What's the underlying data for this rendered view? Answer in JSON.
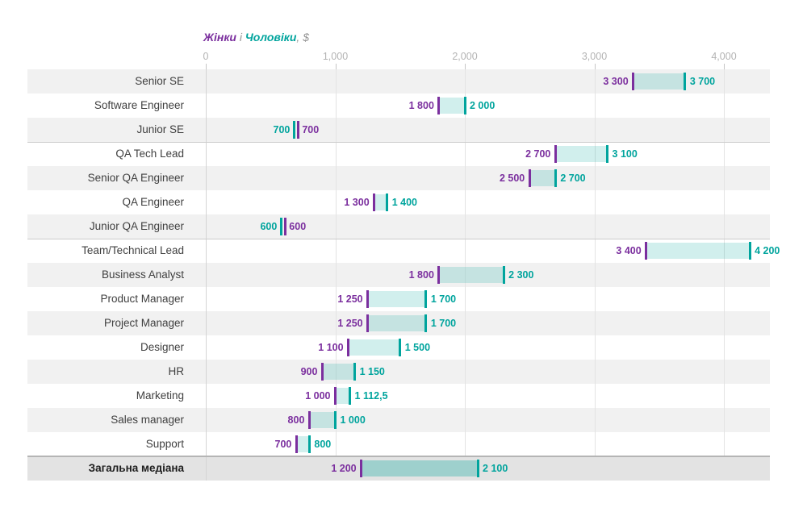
{
  "header": {
    "title_women": "Жінки",
    "title_conjunction": " і ",
    "title_men": "Чоловіки",
    "title_suffix": ", $"
  },
  "colors": {
    "women": "#7b2f9e",
    "men": "#00a49d",
    "band": "rgba(0,166,157,0.18)",
    "band_median": "rgba(0,166,157,0.30)",
    "stripe": "#f1f1f1",
    "stripe_white": "#ffffff",
    "stripe_median": "#e3e3e3",
    "gridline": "#e3e3e3",
    "axis_label": "#b3b3b3"
  },
  "chart_data": {
    "type": "dumbbell",
    "title": "Жінки і Чоловіки, $",
    "legend": [
      {
        "name": "Жінки",
        "color": "#7b2f9e"
      },
      {
        "name": "Чоловіки",
        "color": "#00a49d"
      }
    ],
    "x_axis": {
      "tick_labels": [
        "0",
        "1,000",
        "2,000",
        "3,000",
        "4,000"
      ],
      "tick_values": [
        0,
        1000,
        2000,
        3000,
        4000
      ],
      "xlim": [
        0,
        4350
      ],
      "grid": true,
      "position": "top"
    },
    "categories": [
      "Senior SE",
      "Software Engineer",
      "Junior SE",
      "QA Tech Lead",
      "Senior QA Engineer",
      "QA Engineer",
      "Junior QA Engineer",
      "Team/Technical Lead",
      "Business Analyst",
      "Product Manager",
      "Project Manager",
      "Designer",
      "HR",
      "Marketing",
      "Sales manager",
      "Support",
      "Загальна медіана"
    ],
    "series": [
      {
        "name": "Жінки",
        "values": [
          3300,
          1800,
          700,
          2700,
          2500,
          1300,
          600,
          3400,
          1800,
          1250,
          1250,
          1100,
          900,
          1000,
          800,
          700,
          1200
        ]
      },
      {
        "name": "Чоловіки",
        "values": [
          3700,
          2000,
          700,
          3100,
          2700,
          1400,
          600,
          4200,
          2300,
          1700,
          1700,
          1500,
          1150,
          1112.5,
          1000,
          800,
          2100
        ]
      }
    ],
    "rows": [
      {
        "label": "Senior SE",
        "women": 3300,
        "men": 3700,
        "women_label": "3 300",
        "men_label": "3 700"
      },
      {
        "label": "Software Engineer",
        "women": 1800,
        "men": 2000,
        "women_label": "1 800",
        "men_label": "2 000"
      },
      {
        "label": "Junior SE",
        "women": 700,
        "men": 700,
        "women_label": "700",
        "men_label": "700"
      },
      {
        "label": "QA Tech Lead",
        "women": 2700,
        "men": 3100,
        "women_label": "2 700",
        "men_label": "3 100"
      },
      {
        "label": "Senior QA Engineer",
        "women": 2500,
        "men": 2700,
        "women_label": "2 500",
        "men_label": "2 700"
      },
      {
        "label": "QA Engineer",
        "women": 1300,
        "men": 1400,
        "women_label": "1 300",
        "men_label": "1 400"
      },
      {
        "label": "Junior QA Engineer",
        "women": 600,
        "men": 600,
        "women_label": "600",
        "men_label": "600"
      },
      {
        "label": "Team/Technical Lead",
        "women": 3400,
        "men": 4200,
        "women_label": "3 400",
        "men_label": "4 200"
      },
      {
        "label": "Business Analyst",
        "women": 1800,
        "men": 2300,
        "women_label": "1 800",
        "men_label": "2 300"
      },
      {
        "label": "Product Manager",
        "women": 1250,
        "men": 1700,
        "women_label": "1 250",
        "men_label": "1 700"
      },
      {
        "label": "Project Manager",
        "women": 1250,
        "men": 1700,
        "women_label": "1 250",
        "men_label": "1 700"
      },
      {
        "label": "Designer",
        "women": 1100,
        "men": 1500,
        "women_label": "1 100",
        "men_label": "1 500"
      },
      {
        "label": "HR",
        "women": 900,
        "men": 1150,
        "women_label": "900",
        "men_label": "1 150"
      },
      {
        "label": "Marketing",
        "women": 1000,
        "men": 1112.5,
        "women_label": "1 000",
        "men_label": "1 112,5"
      },
      {
        "label": "Sales manager",
        "women": 800,
        "men": 1000,
        "women_label": "800",
        "men_label": "1 000"
      },
      {
        "label": "Support",
        "women": 700,
        "men": 800,
        "women_label": "700",
        "men_label": "800"
      },
      {
        "label": "Загальна медіана",
        "women": 1200,
        "men": 2100,
        "women_label": "1 200",
        "men_label": "2 100",
        "median": true
      }
    ],
    "separators_after_index": [
      2,
      6
    ]
  }
}
